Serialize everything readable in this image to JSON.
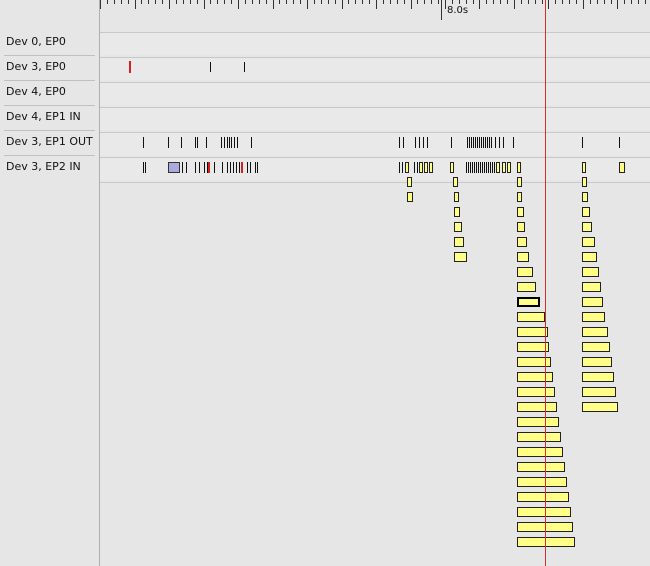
{
  "ruler": {
    "label": "8.0s"
  },
  "tracks": [
    {
      "label": "Dev 0, EP0"
    },
    {
      "label": "Dev 3, EP0"
    },
    {
      "label": "Dev 4, EP0"
    },
    {
      "label": "Dev 4, EP1 IN"
    },
    {
      "label": "Dev 3, EP1 OUT"
    },
    {
      "label": "Dev 3, EP2 IN"
    }
  ],
  "colors": {
    "background": "#e6e6e6",
    "cursor": "#d43030",
    "transfer_fill": "#ffff88",
    "transfer_border": "#222222",
    "error": "#d42020",
    "setup_block": "#aaaadd"
  },
  "selected_transfer": {
    "track": "Dev 3, EP2 IN",
    "stack": 3,
    "level": 9
  }
}
